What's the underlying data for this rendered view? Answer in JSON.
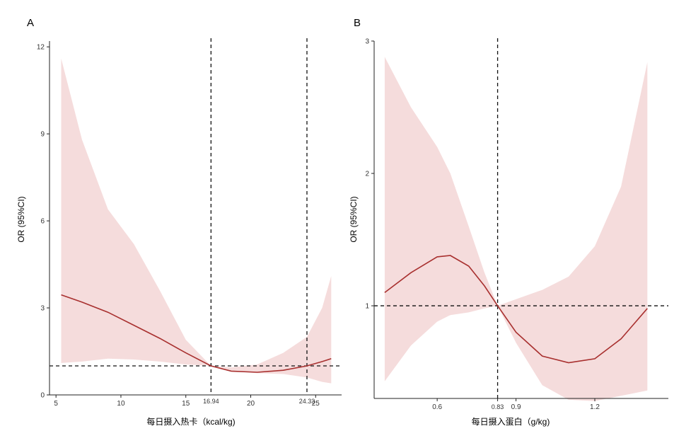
{
  "chart_data": [
    {
      "panel": "A",
      "type": "line",
      "xlabel": "每日摄入热卡（kcal/kg)",
      "ylabel": "OR (95%CI)",
      "xlim": [
        4.5,
        27
      ],
      "ylim": [
        0,
        12.2
      ],
      "x_ticks": [
        5,
        10,
        15,
        20,
        25
      ],
      "y_ticks": [
        0,
        3,
        6,
        9,
        12
      ],
      "reference_y": 1,
      "vlines": [
        {
          "x": 16.94,
          "label": "16.94"
        },
        {
          "x": 24.33,
          "label": "24.33"
        }
      ],
      "series": [
        {
          "name": "OR",
          "color": "#a8302f",
          "x": [
            5.4,
            7,
            9,
            11,
            13,
            15,
            16.94,
            18.5,
            20.5,
            22.5,
            24.33,
            25.5,
            26.2
          ],
          "y": [
            3.45,
            3.2,
            2.85,
            2.4,
            1.95,
            1.45,
            1.0,
            0.82,
            0.78,
            0.85,
            1.0,
            1.15,
            1.25
          ],
          "ci_lower": [
            1.1,
            1.15,
            1.25,
            1.22,
            1.15,
            1.05,
            1.0,
            0.82,
            0.75,
            0.72,
            0.6,
            0.45,
            0.4
          ],
          "ci_upper": [
            11.6,
            8.8,
            6.4,
            5.2,
            3.6,
            1.9,
            1.0,
            0.95,
            1.05,
            1.45,
            2.0,
            3.0,
            4.1
          ]
        }
      ]
    },
    {
      "panel": "B",
      "type": "line",
      "xlabel": "每日摄入蛋白（g/kg)",
      "ylabel": "OR (95%CI)",
      "xlim": [
        0.36,
        1.48
      ],
      "ylim": [
        0.3,
        3
      ],
      "x_ticks": [
        0.6,
        0.83,
        0.9,
        1.2
      ],
      "x_tick_labels": [
        "0.6",
        "0.83",
        "0.9",
        "1.2"
      ],
      "y_ticks": [
        1,
        2,
        3
      ],
      "reference_y": 1,
      "vlines": [
        {
          "x": 0.83,
          "label": "0.83"
        }
      ],
      "series": [
        {
          "name": "OR",
          "color": "#a8302f",
          "x": [
            0.4,
            0.5,
            0.6,
            0.65,
            0.72,
            0.78,
            0.83,
            0.9,
            1.0,
            1.1,
            1.2,
            1.3,
            1.4
          ],
          "y": [
            1.1,
            1.25,
            1.37,
            1.38,
            1.3,
            1.15,
            1.0,
            0.8,
            0.62,
            0.57,
            0.6,
            0.75,
            0.98
          ],
          "ci_lower": [
            0.43,
            0.7,
            0.88,
            0.93,
            0.95,
            0.98,
            1.0,
            0.72,
            0.4,
            0.29,
            0.28,
            0.32,
            0.36
          ],
          "ci_upper": [
            2.88,
            2.5,
            2.2,
            2.0,
            1.6,
            1.25,
            1.0,
            1.05,
            1.12,
            1.22,
            1.45,
            1.9,
            2.84
          ]
        }
      ]
    }
  ]
}
